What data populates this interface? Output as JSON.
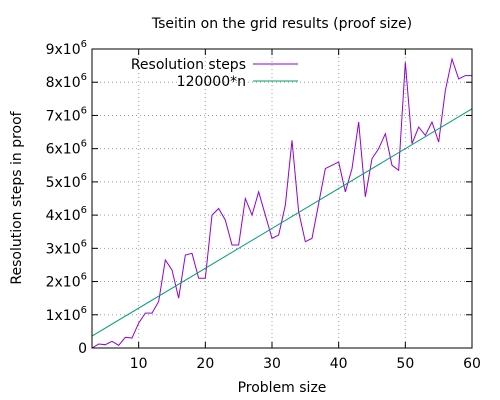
{
  "chart_data": {
    "type": "line",
    "title": "Tseitin on the grid results (proof size)",
    "xlabel": "Problem size",
    "ylabel": "Resolution steps in proof",
    "xlim": [
      3,
      60
    ],
    "ylim": [
      0,
      9000000
    ],
    "x_ticks": [
      10,
      20,
      30,
      40,
      50,
      60
    ],
    "y_ticks": [
      0,
      1000000,
      2000000,
      3000000,
      4000000,
      5000000,
      6000000,
      7000000,
      8000000,
      9000000
    ],
    "y_tick_labels": [
      {
        "mantissa": "0",
        "exponent": ""
      },
      {
        "mantissa": "1x10",
        "exponent": "6"
      },
      {
        "mantissa": "2x10",
        "exponent": "6"
      },
      {
        "mantissa": "3x10",
        "exponent": "6"
      },
      {
        "mantissa": "4x10",
        "exponent": "6"
      },
      {
        "mantissa": "5x10",
        "exponent": "6"
      },
      {
        "mantissa": "6x10",
        "exponent": "6"
      },
      {
        "mantissa": "7x10",
        "exponent": "6"
      },
      {
        "mantissa": "8x10",
        "exponent": "6"
      },
      {
        "mantissa": "9x10",
        "exponent": "6"
      }
    ],
    "grid": true,
    "legend_position": "top-left",
    "series": [
      {
        "name": "Resolution steps",
        "color": "#9400d3",
        "x": [
          3,
          4,
          5,
          6,
          7,
          8,
          9,
          10,
          11,
          12,
          13,
          14,
          15,
          16,
          17,
          18,
          19,
          20,
          21,
          22,
          23,
          24,
          25,
          26,
          27,
          28,
          29,
          30,
          31,
          32,
          33,
          34,
          35,
          36,
          37,
          38,
          39,
          40,
          41,
          42,
          43,
          44,
          45,
          46,
          47,
          48,
          49,
          50,
          51,
          52,
          53,
          54,
          55,
          56,
          57,
          58,
          59,
          60
        ],
        "values": [
          0,
          120000,
          100000,
          200000,
          80000,
          320000,
          300000,
          750000,
          1050000,
          1050000,
          1400000,
          2650000,
          2350000,
          1500000,
          2800000,
          2850000,
          2100000,
          2100000,
          4000000,
          4200000,
          3850000,
          3100000,
          3100000,
          4500000,
          4000000,
          4700000,
          4000000,
          3300000,
          3400000,
          4300000,
          6250000,
          4100000,
          3200000,
          3300000,
          4350000,
          5400000,
          5500000,
          5600000,
          4700000,
          5400000,
          6800000,
          4550000,
          5700000,
          6000000,
          6450000,
          5500000,
          5350000,
          8600000,
          6150000,
          6650000,
          6400000,
          6800000,
          6200000,
          7750000,
          8700000,
          8100000,
          8200000,
          8200000
        ]
      },
      {
        "name": "120000*n",
        "color": "#009e73",
        "x": [
          3,
          60
        ],
        "values": [
          360000,
          7200000
        ]
      }
    ]
  }
}
